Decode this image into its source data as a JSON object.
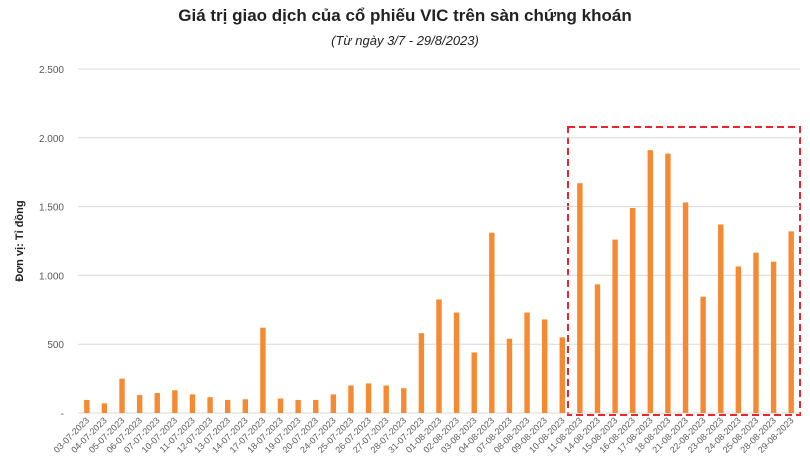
{
  "chart_data": {
    "type": "bar",
    "title": "Giá trị giao dịch của cổ phiếu VIC trên sàn chứng khoán",
    "subtitle": "(Từ ngày 3/7 - 29/8/2023)",
    "y_label": "Đơn vị: Tỉ đồng",
    "categories": [
      "03-07-2023",
      "04-07-2023",
      "05-07-2023",
      "06-07-2023",
      "07-07-2023",
      "10-07-2023",
      "11-07-2023",
      "12-07-2023",
      "13-07-2023",
      "14-07-2023",
      "17-07-2023",
      "18-07-2023",
      "19-07-2023",
      "20-07-2023",
      "24-07-2023",
      "25-07-2023",
      "26-07-2023",
      "27-07-2023",
      "28-07-2023",
      "31-07-2023",
      "01-08-2023",
      "02-08-2023",
      "03-08-2023",
      "04-08-2023",
      "07-08-2023",
      "08-08-2023",
      "09-08-2023",
      "10-08-2023",
      "11-08-2023",
      "14-08-2023",
      "15-08-2023",
      "16-08-2023",
      "17-08-2023",
      "18-08-2023",
      "21-08-2023",
      "22-08-2023",
      "23-08-2023",
      "24-08-2023",
      "25-08-2023",
      "28-08-2023",
      "29-08-2023"
    ],
    "values": [
      95,
      70,
      250,
      130,
      145,
      165,
      135,
      115,
      95,
      100,
      620,
      105,
      95,
      95,
      135,
      200,
      215,
      200,
      180,
      580,
      825,
      730,
      440,
      1310,
      540,
      730,
      680,
      550,
      1670,
      935,
      1260,
      1490,
      1910,
      1885,
      1530,
      845,
      1370,
      1065,
      1165,
      1100,
      1320
    ],
    "color": "#f58a32",
    "ylim": [
      0,
      2500
    ],
    "yticks": [
      {
        "value": 0,
        "label": "-"
      },
      500,
      {
        "value": 1000,
        "label": "1.000"
      },
      {
        "value": 1500,
        "label": "1.500"
      },
      {
        "value": 2000,
        "label": "2.000"
      },
      {
        "value": 2500,
        "label": "2.500"
      }
    ],
    "grid": true
  }
}
